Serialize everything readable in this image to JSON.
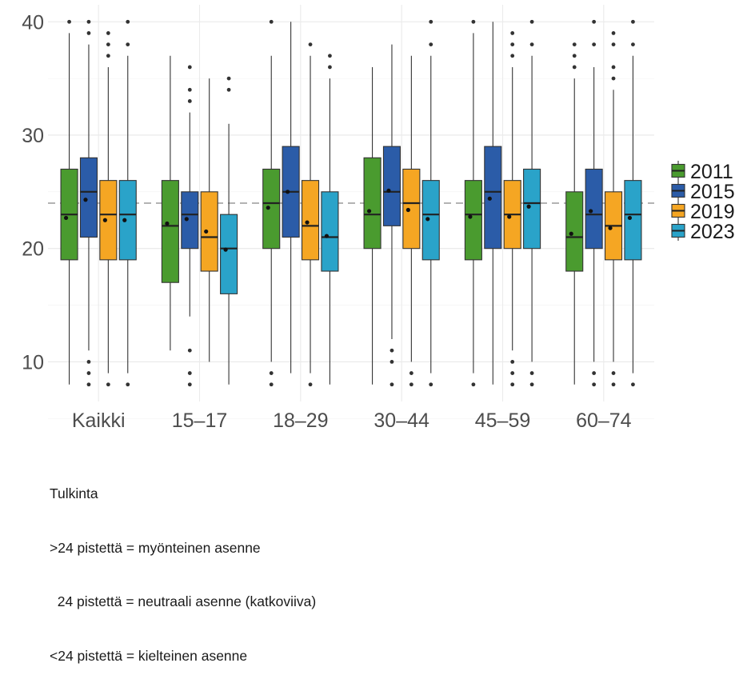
{
  "chart_data": {
    "type": "boxplot",
    "title": "",
    "xlabel": "",
    "ylabel": "",
    "ylim": [
      6.5,
      41.5
    ],
    "yticks": [
      10,
      20,
      30,
      40
    ],
    "grid": true,
    "legend_position": "right",
    "reference_line": {
      "y": 24,
      "style": "dashed",
      "color": "#b3b3b3"
    },
    "categories": [
      "Kaikki",
      "15–17",
      "18–29",
      "30–44",
      "45–59",
      "60–74"
    ],
    "series": [
      {
        "name": "2011",
        "color": "#4a9b2f",
        "boxes": [
          {
            "whisker_low": 8,
            "q1": 19,
            "median": 23,
            "q3": 27,
            "whisker_high": 39,
            "mean": 22.7,
            "outliers": [
              40
            ]
          },
          {
            "whisker_low": 11,
            "q1": 17,
            "median": 22,
            "q3": 26,
            "whisker_high": 37,
            "mean": 22.2,
            "outliers": []
          },
          {
            "whisker_low": 10,
            "q1": 20,
            "median": 24,
            "q3": 27,
            "whisker_high": 37,
            "mean": 23.6,
            "outliers": [
              8,
              9,
              40
            ]
          },
          {
            "whisker_low": 8,
            "q1": 20,
            "median": 23,
            "q3": 28,
            "whisker_high": 36,
            "mean": 23.3,
            "outliers": []
          },
          {
            "whisker_low": 9,
            "q1": 19,
            "median": 23,
            "q3": 26,
            "whisker_high": 39,
            "mean": 22.8,
            "outliers": [
              8,
              40
            ]
          },
          {
            "whisker_low": 8,
            "q1": 18,
            "median": 21,
            "q3": 25,
            "whisker_high": 35,
            "mean": 21.3,
            "outliers": [
              36,
              37,
              38
            ]
          }
        ]
      },
      {
        "name": "2015",
        "color": "#2b5ca8",
        "boxes": [
          {
            "whisker_low": 11,
            "q1": 21,
            "median": 25,
            "q3": 28,
            "whisker_high": 38,
            "mean": 24.3,
            "outliers": [
              8,
              9,
              10,
              39,
              40
            ]
          },
          {
            "whisker_low": 14,
            "q1": 20,
            "median": 23,
            "q3": 25,
            "whisker_high": 32,
            "mean": 22.6,
            "outliers": [
              8,
              9,
              11,
              33,
              34,
              36
            ]
          },
          {
            "whisker_low": 9,
            "q1": 21,
            "median": 25,
            "q3": 29,
            "whisker_high": 40,
            "mean": 25.0,
            "outliers": []
          },
          {
            "whisker_low": 12,
            "q1": 22,
            "median": 25,
            "q3": 29,
            "whisker_high": 38,
            "mean": 25.1,
            "outliers": [
              8,
              10,
              11
            ]
          },
          {
            "whisker_low": 8,
            "q1": 20,
            "median": 25,
            "q3": 29,
            "whisker_high": 40,
            "mean": 24.4,
            "outliers": []
          },
          {
            "whisker_low": 10,
            "q1": 20,
            "median": 23,
            "q3": 27,
            "whisker_high": 36,
            "mean": 23.3,
            "outliers": [
              8,
              9,
              38,
              40
            ]
          }
        ]
      },
      {
        "name": "2019",
        "color": "#f5a623",
        "boxes": [
          {
            "whisker_low": 9,
            "q1": 19,
            "median": 23,
            "q3": 26,
            "whisker_high": 36,
            "mean": 22.5,
            "outliers": [
              8,
              37,
              38,
              39
            ]
          },
          {
            "whisker_low": 10,
            "q1": 18,
            "median": 21,
            "q3": 25,
            "whisker_high": 35,
            "mean": 21.5,
            "outliers": []
          },
          {
            "whisker_low": 9,
            "q1": 19,
            "median": 22,
            "q3": 26,
            "whisker_high": 37,
            "mean": 22.3,
            "outliers": [
              8,
              38
            ]
          },
          {
            "whisker_low": 10,
            "q1": 20,
            "median": 24,
            "q3": 27,
            "whisker_high": 37,
            "mean": 23.4,
            "outliers": [
              8,
              9
            ]
          },
          {
            "whisker_low": 11,
            "q1": 20,
            "median": 23,
            "q3": 26,
            "whisker_high": 36,
            "mean": 22.8,
            "outliers": [
              8,
              9,
              10,
              37,
              38,
              39
            ]
          },
          {
            "whisker_low": 10,
            "q1": 19,
            "median": 22,
            "q3": 25,
            "whisker_high": 34,
            "mean": 21.8,
            "outliers": [
              8,
              9,
              35,
              36,
              38,
              39
            ]
          }
        ]
      },
      {
        "name": "2023",
        "color": "#2aa3c9",
        "boxes": [
          {
            "whisker_low": 9,
            "q1": 19,
            "median": 23,
            "q3": 26,
            "whisker_high": 37,
            "mean": 22.5,
            "outliers": [
              8,
              38,
              40
            ]
          },
          {
            "whisker_low": 8,
            "q1": 16,
            "median": 20,
            "q3": 23,
            "whisker_high": 31,
            "mean": 19.9,
            "outliers": [
              34,
              35
            ]
          },
          {
            "whisker_low": 8,
            "q1": 18,
            "median": 21,
            "q3": 25,
            "whisker_high": 35,
            "mean": 21.1,
            "outliers": [
              36,
              37
            ]
          },
          {
            "whisker_low": 9,
            "q1": 19,
            "median": 23,
            "q3": 26,
            "whisker_high": 37,
            "mean": 22.6,
            "outliers": [
              8,
              38,
              40
            ]
          },
          {
            "whisker_low": 10,
            "q1": 20,
            "median": 24,
            "q3": 27,
            "whisker_high": 37,
            "mean": 23.7,
            "outliers": [
              8,
              9,
              38,
              40
            ]
          },
          {
            "whisker_low": 9,
            "q1": 19,
            "median": 23,
            "q3": 26,
            "whisker_high": 37,
            "mean": 22.7,
            "outliers": [
              8,
              38,
              40
            ]
          }
        ]
      }
    ]
  },
  "caption": {
    "heading": "Tulkinta",
    "lines": [
      ">24 pistettä = myönteinen asenne",
      "  24 pistettä = neutraali asenne (katkoviiva)",
      "<24 pistettä = kielteinen asenne"
    ]
  }
}
